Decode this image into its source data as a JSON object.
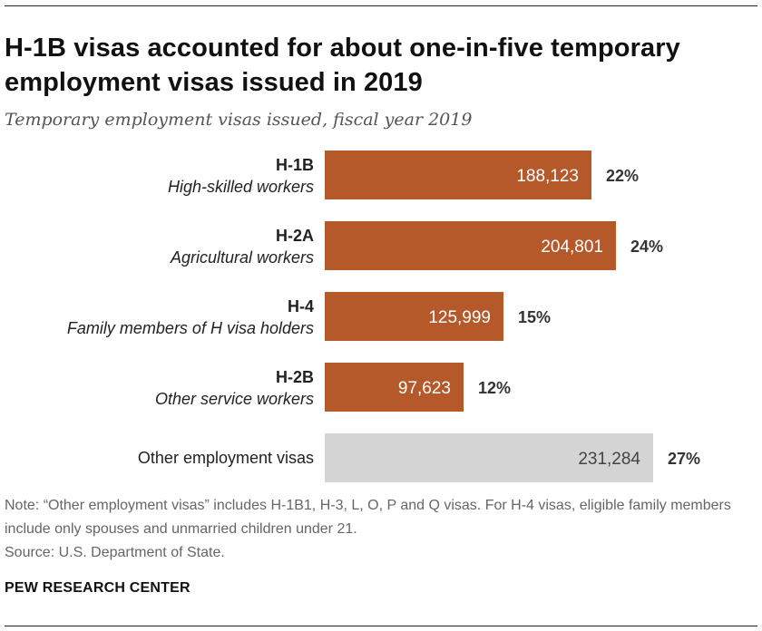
{
  "header": {
    "title": "H-1B visas accounted for about one-in-five temporary employment visas issued in 2019",
    "subtitle": "Temporary employment visas issued, fiscal year 2019"
  },
  "chart_data": {
    "type": "bar",
    "orientation": "horizontal",
    "title": "H-1B visas accounted for about one-in-five temporary employment visas issued in 2019",
    "subtitle": "Temporary employment visas issued, fiscal year 2019",
    "categories": [
      {
        "code": "H-1B",
        "description": "High-skilled workers"
      },
      {
        "code": "H-2A",
        "description": "Agricultural workers"
      },
      {
        "code": "H-4",
        "description": "Family members of H visa holders"
      },
      {
        "code": "H-2B",
        "description": "Other service workers"
      },
      {
        "code": "",
        "description": "Other employment visas"
      }
    ],
    "values": [
      188123,
      204801,
      125999,
      97623,
      231284
    ],
    "value_labels": [
      "188,123",
      "204,801",
      "125,999",
      "97,623",
      "231,284"
    ],
    "percent_labels": [
      "22%",
      "24%",
      "15%",
      "12%",
      "27%"
    ],
    "colors": [
      "#b5592a",
      "#b5592a",
      "#b5592a",
      "#b5592a",
      "#d4d4d4"
    ],
    "xlim": [
      0,
      231284
    ],
    "xlabel": "",
    "ylabel": ""
  },
  "footer": {
    "note": "Note: “Other employment visas” includes H-1B1, H-3, L, O, P and Q visas. For H-4 visas, eligible family members include only spouses and unmarried children under 21.",
    "source": "Source: U.S. Department of State.",
    "brand": "PEW RESEARCH CENTER"
  }
}
